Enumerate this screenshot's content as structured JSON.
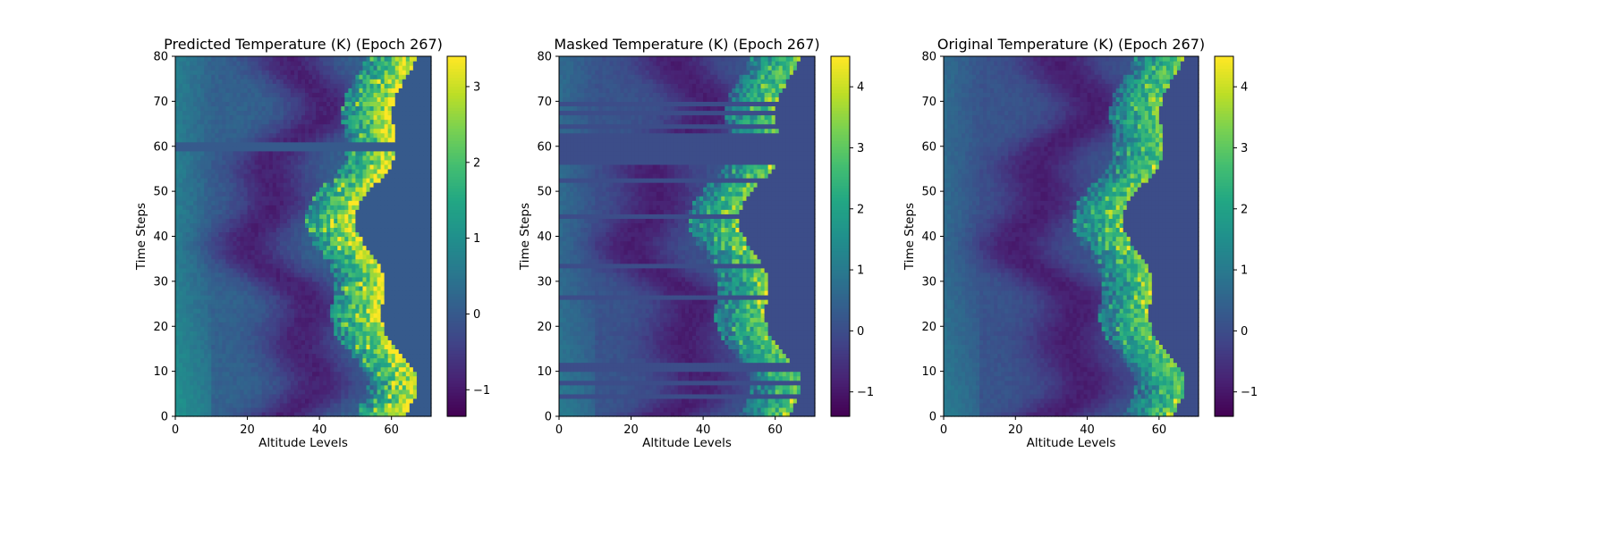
{
  "chart_data": [
    {
      "type": "heatmap",
      "title": "Predicted Temperature (K) (Epoch 267)",
      "xlabel": "Altitude Levels",
      "ylabel": "Time Steps",
      "xlim": [
        0,
        71
      ],
      "ylim": [
        0,
        80
      ],
      "xticks": [
        "0",
        "20",
        "40",
        "60"
      ],
      "yticks": [
        "0",
        "10",
        "20",
        "30",
        "40",
        "50",
        "60",
        "70",
        "80"
      ],
      "colormap": "viridis",
      "colorbar": {
        "min": -1.35,
        "max": 3.4,
        "ticks": [
          "−1",
          "0",
          "1",
          "2",
          "3"
        ]
      },
      "grid": 71,
      "rows": 80,
      "profile": {
        "min_trough_altitude": [
          32,
          34,
          36,
          38,
          40,
          42,
          38,
          30,
          26,
          30,
          34,
          30,
          26
        ],
        "edge_altitude": [
          46,
          54,
          58,
          60,
          58,
          60,
          62,
          66,
          64,
          58,
          54,
          52
        ],
        "edge_value": 2.8,
        "trough_value": -1.0,
        "background_value": 0.0
      },
      "masked_time_rows": []
    },
    {
      "type": "heatmap",
      "title": "Masked Temperature (K) (Epoch 267)",
      "xlabel": "Altitude Levels",
      "ylabel": "Time Steps",
      "xlim": [
        0,
        71
      ],
      "ylim": [
        0,
        80
      ],
      "xticks": [
        "0",
        "20",
        "40",
        "60"
      ],
      "yticks": [
        "0",
        "10",
        "20",
        "30",
        "40",
        "50",
        "60",
        "70",
        "80"
      ],
      "colormap": "viridis",
      "colorbar": {
        "min": -1.4,
        "max": 4.5,
        "ticks": [
          "−1",
          "0",
          "1",
          "2",
          "3",
          "4"
        ]
      },
      "masked_time_rows": [
        4,
        7,
        10,
        11,
        26,
        33,
        44,
        52,
        56,
        57,
        58,
        59,
        60,
        61,
        62,
        64,
        67,
        69
      ]
    },
    {
      "type": "heatmap",
      "title": "Original Temperature (K) (Epoch 267)",
      "xlabel": "Altitude Levels",
      "ylabel": "Time Steps",
      "xlim": [
        0,
        71
      ],
      "ylim": [
        0,
        80
      ],
      "xticks": [
        "0",
        "20",
        "40",
        "60"
      ],
      "yticks": [
        "0",
        "10",
        "20",
        "30",
        "40",
        "50",
        "60",
        "70",
        "80"
      ],
      "colormap": "viridis",
      "colorbar": {
        "min": -1.4,
        "max": 4.5,
        "ticks": [
          "−1",
          "0",
          "1",
          "2",
          "3",
          "4"
        ]
      },
      "masked_time_rows": []
    }
  ]
}
